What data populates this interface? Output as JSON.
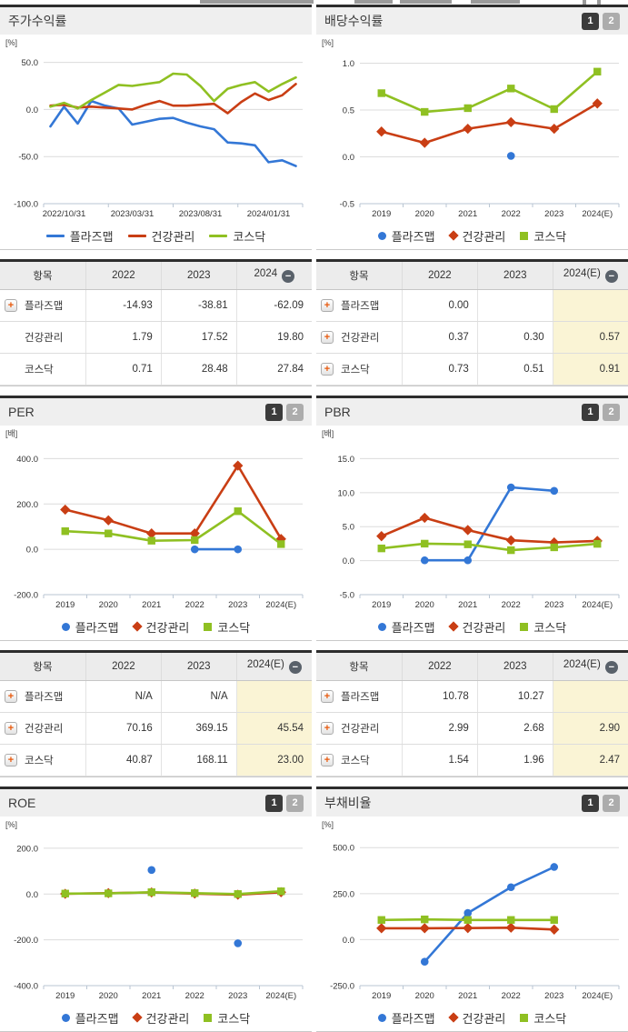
{
  "pager": {
    "first": "1",
    "second": "2"
  },
  "colors": {
    "plasmapp": "#3377d6",
    "healthcare": "#c93e14",
    "kosdaq": "#8fc022",
    "estimate_bg": "#faf4d5",
    "pager_active": "#3b3b3b",
    "pager_inactive": "#acacac"
  },
  "chart_data": [
    {
      "type": "line",
      "title": "주가수익률",
      "unit": "[%]",
      "ylim": [
        -100,
        66
      ],
      "yticks": [
        50,
        0,
        -50,
        -100
      ],
      "tick_segments": 4,
      "categories": [
        "",
        "2022/10/31",
        "",
        "",
        "",
        "",
        "2023/03/31",
        "",
        "",
        "",
        "",
        "2023/08/31",
        "",
        "",
        "",
        "",
        "2024/01/31",
        "",
        ""
      ],
      "series": [
        {
          "key": "plasmapp",
          "label": "플라즈맵",
          "marker": "line",
          "values": [
            -18,
            3,
            -15,
            9,
            4,
            1,
            -16,
            -13,
            -10,
            -9,
            -14,
            -18,
            -21,
            -35,
            -36,
            -38,
            -56,
            -54,
            -60
          ]
        },
        {
          "key": "healthcare",
          "label": "건강관리",
          "marker": "line",
          "values": [
            4,
            5,
            2,
            3,
            2,
            1,
            0,
            5,
            9,
            4,
            4,
            5,
            6,
            -4,
            8,
            17,
            10,
            15,
            27
          ]
        },
        {
          "key": "kosdaq",
          "label": "코스닥",
          "marker": "line",
          "values": [
            3,
            7,
            1,
            10,
            18,
            26,
            25,
            27,
            29,
            38,
            37,
            25,
            9,
            22,
            26,
            29,
            19,
            27,
            34
          ]
        }
      ]
    },
    {
      "type": "line",
      "title": "배당수익률",
      "unit": "[%]",
      "pager": true,
      "ylim": [
        -0.5,
        1.17
      ],
      "yticks": [
        1.0,
        0.5,
        0.0,
        -0.5
      ],
      "tick_segments": 6,
      "categories": [
        "2019",
        "2020",
        "2021",
        "2022",
        "2023",
        "2024(E)"
      ],
      "series": [
        {
          "key": "plasmapp",
          "label": "플라즈맵",
          "marker": "circle",
          "values": [
            null,
            null,
            null,
            0.01,
            null,
            null
          ]
        },
        {
          "key": "healthcare",
          "label": "건강관리",
          "marker": "diamond",
          "values": [
            0.27,
            0.15,
            0.3,
            0.37,
            0.3,
            0.57
          ]
        },
        {
          "key": "kosdaq",
          "label": "코스닥",
          "marker": "square",
          "values": [
            0.68,
            0.48,
            0.52,
            0.73,
            0.51,
            0.91
          ]
        }
      ]
    },
    {
      "type": "line",
      "title": "PER",
      "unit": "[배]",
      "pager": true,
      "ylim": [
        -200,
        490
      ],
      "yticks": [
        400,
        200,
        0,
        -200
      ],
      "tick_segments": 6,
      "categories": [
        "2019",
        "2020",
        "2021",
        "2022",
        "2023",
        "2024(E)"
      ],
      "series": [
        {
          "key": "plasmapp",
          "label": "플라즈맵",
          "marker": "circle",
          "values": [
            null,
            null,
            null,
            0,
            0,
            null
          ]
        },
        {
          "key": "healthcare",
          "label": "건강관리",
          "marker": "diamond",
          "values": [
            175,
            128,
            70,
            70.16,
            369.15,
            45.54
          ]
        },
        {
          "key": "kosdaq",
          "label": "코스닥",
          "marker": "square",
          "values": [
            80,
            70,
            38,
            40.87,
            168.11,
            23.0
          ]
        }
      ]
    },
    {
      "type": "line",
      "title": "PBR",
      "unit": "[배]",
      "pager": true,
      "ylim": [
        -5,
        18
      ],
      "yticks": [
        15,
        10,
        5,
        0,
        -5
      ],
      "tick_segments": 6,
      "categories": [
        "2019",
        "2020",
        "2021",
        "2022",
        "2023",
        "2024(E)"
      ],
      "series": [
        {
          "key": "plasmapp",
          "label": "플라즈맵",
          "marker": "circle",
          "values": [
            null,
            0.05,
            0.05,
            10.78,
            10.27,
            null
          ]
        },
        {
          "key": "healthcare",
          "label": "건강관리",
          "marker": "diamond",
          "values": [
            3.6,
            6.3,
            4.5,
            2.99,
            2.68,
            2.9
          ]
        },
        {
          "key": "kosdaq",
          "label": "코스닥",
          "marker": "square",
          "values": [
            1.8,
            2.5,
            2.4,
            1.54,
            1.96,
            2.47
          ]
        }
      ]
    },
    {
      "type": "line",
      "title": "ROE",
      "unit": "[%]",
      "pager": true,
      "ylim": [
        -400,
        283
      ],
      "yticks": [
        200,
        0,
        -200,
        -400
      ],
      "tick_segments": 6,
      "categories": [
        "2019",
        "2020",
        "2021",
        "2022",
        "2023",
        "2024(E)"
      ],
      "series": [
        {
          "key": "plasmapp",
          "label": "플라즈맵",
          "marker": "circle",
          "values": [
            null,
            null,
            105,
            null,
            -215,
            null
          ]
        },
        {
          "key": "healthcare",
          "label": "건강관리",
          "marker": "diamond",
          "values": [
            1,
            4,
            7,
            2,
            -3,
            8
          ]
        },
        {
          "key": "kosdaq",
          "label": "코스닥",
          "marker": "square",
          "values": [
            2,
            3,
            8,
            4,
            0,
            12
          ]
        }
      ]
    },
    {
      "type": "line",
      "title": "부채비율",
      "unit": "[%]",
      "pager": true,
      "ylim": [
        -250,
        600
      ],
      "yticks": [
        500,
        250,
        0,
        -250
      ],
      "tick_segments": 6,
      "categories": [
        "2019",
        "2020",
        "2021",
        "2022",
        "2023",
        "2024(E)"
      ],
      "series": [
        {
          "key": "plasmapp",
          "label": "플라즈맵",
          "marker": "circle",
          "values": [
            null,
            -120,
            145,
            285,
            395,
            null
          ]
        },
        {
          "key": "healthcare",
          "label": "건강관리",
          "marker": "diamond",
          "values": [
            62,
            62,
            63,
            65,
            55,
            null
          ]
        },
        {
          "key": "kosdaq",
          "label": "코스닥",
          "marker": "square",
          "values": [
            107,
            110,
            107,
            107,
            107,
            null
          ]
        }
      ]
    }
  ],
  "tables": [
    {
      "name": "price-return-table",
      "headers": [
        "항목",
        "2022",
        "2023",
        "2024"
      ],
      "minus_icon": true,
      "highlight_last": false,
      "rows": [
        {
          "plus": true,
          "label": "플라즈맵",
          "values": [
            "-14.93",
            "-38.81",
            "-62.09"
          ]
        },
        {
          "plus": false,
          "label": "건강관리",
          "values": [
            "1.79",
            "17.52",
            "19.80"
          ]
        },
        {
          "plus": false,
          "label": "코스닥",
          "values": [
            "0.71",
            "28.48",
            "27.84"
          ]
        }
      ]
    },
    {
      "name": "dividend-yield-table",
      "headers": [
        "항목",
        "2022",
        "2023",
        "2024(E)"
      ],
      "minus_icon": true,
      "highlight_last": true,
      "rows": [
        {
          "plus": true,
          "label": "플라즈맵",
          "values": [
            "0.00",
            "",
            ""
          ]
        },
        {
          "plus": true,
          "label": "건강관리",
          "values": [
            "0.37",
            "0.30",
            "0.57"
          ]
        },
        {
          "plus": true,
          "label": "코스닥",
          "values": [
            "0.73",
            "0.51",
            "0.91"
          ]
        }
      ]
    },
    {
      "name": "per-table",
      "headers": [
        "항목",
        "2022",
        "2023",
        "2024(E)"
      ],
      "minus_icon": true,
      "highlight_last": true,
      "rows": [
        {
          "plus": true,
          "label": "플라즈맵",
          "values": [
            "N/A",
            "N/A",
            ""
          ]
        },
        {
          "plus": true,
          "label": "건강관리",
          "values": [
            "70.16",
            "369.15",
            "45.54"
          ]
        },
        {
          "plus": true,
          "label": "코스닥",
          "values": [
            "40.87",
            "168.11",
            "23.00"
          ]
        }
      ]
    },
    {
      "name": "pbr-table",
      "headers": [
        "항목",
        "2022",
        "2023",
        "2024(E)"
      ],
      "minus_icon": true,
      "highlight_last": true,
      "rows": [
        {
          "plus": true,
          "label": "플라즈맵",
          "values": [
            "10.78",
            "10.27",
            ""
          ]
        },
        {
          "plus": true,
          "label": "건강관리",
          "values": [
            "2.99",
            "2.68",
            "2.90"
          ]
        },
        {
          "plus": true,
          "label": "코스닥",
          "values": [
            "1.54",
            "1.96",
            "2.47"
          ]
        }
      ]
    }
  ]
}
